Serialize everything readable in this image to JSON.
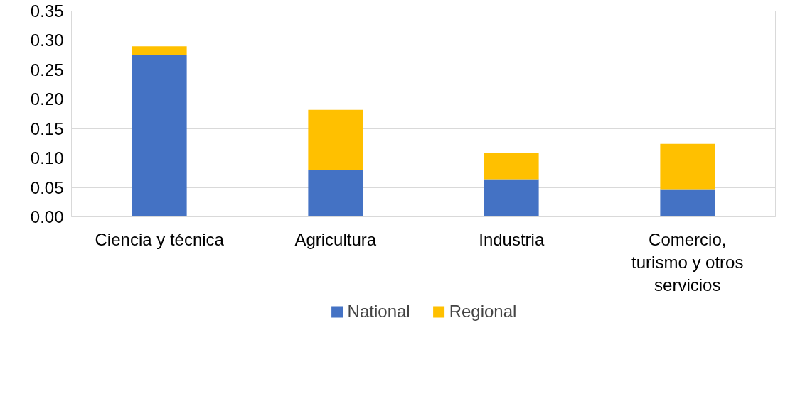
{
  "chart_data": {
    "type": "bar",
    "stacked": true,
    "categories": [
      "Ciencia y técnica",
      "Agricultura",
      "Industria",
      "Comercio,\nturismo y otros\nservicios"
    ],
    "series": [
      {
        "name": "National",
        "color": "#4472c4",
        "values": [
          0.275,
          0.08,
          0.064,
          0.046
        ]
      },
      {
        "name": "Regional",
        "color": "#ffc000",
        "values": [
          0.015,
          0.102,
          0.045,
          0.078
        ]
      }
    ],
    "ylim": [
      0,
      0.35
    ],
    "yticks": [
      {
        "value": 0,
        "label": "0.00"
      },
      {
        "value": 0.05,
        "label": "0.05"
      },
      {
        "value": 0.1,
        "label": "0.10"
      },
      {
        "value": 0.15,
        "label": "0.15"
      },
      {
        "value": 0.2,
        "label": "0.20"
      },
      {
        "value": 0.25,
        "label": "0.25"
      },
      {
        "value": 0.3,
        "label": "0.30"
      },
      {
        "value": 0.35,
        "label": "0.35"
      }
    ],
    "grid": "y",
    "legend": "bottom"
  }
}
